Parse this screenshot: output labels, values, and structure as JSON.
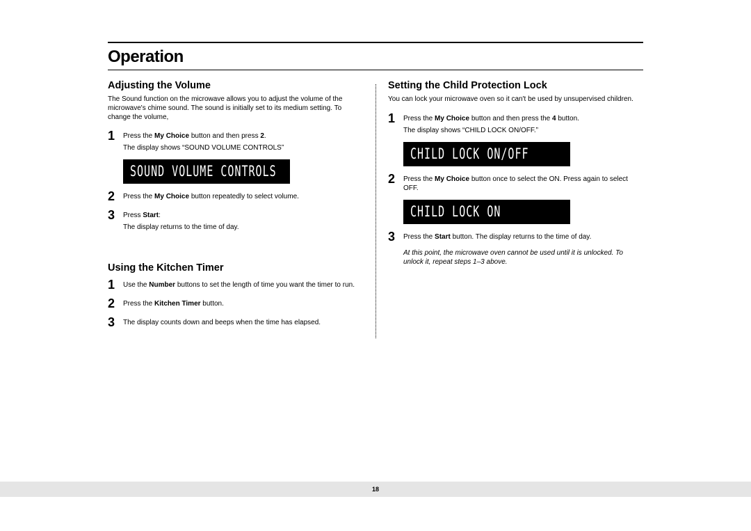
{
  "page": {
    "title": "Operation",
    "number": "18"
  },
  "colors": {
    "lcd_bg": "#000000",
    "lcd_fg": "#ffffff",
    "footer_bg": "#e5e5e5"
  },
  "left": {
    "section1": {
      "heading": "Adjusting the Volume",
      "intro": "The Sound function on the microwave allows you to adjust the volume of the microwave's chime sound. The sound is initially set to its medium setting. To change the volume,",
      "steps": {
        "s1": {
          "num": "1",
          "line1_pre": "Press the ",
          "line1_b1": "My Choice",
          "line1_mid": " button and then press ",
          "line1_b2": "2",
          "line1_post": ".",
          "line2": "The display shows “SOUND VOLUME CONTROLS”"
        },
        "lcd1": "SOUND VOLUME CONTROLS",
        "s2": {
          "num": "2",
          "pre": "Press the ",
          "b1": "My Choice",
          "post": " button repeatedly to select volume."
        },
        "s3": {
          "num": "3",
          "pre": "Press ",
          "b1": "Start",
          "post": ":",
          "line2": "The display returns to the time of day."
        }
      }
    },
    "section2": {
      "heading": "Using the Kitchen Timer",
      "steps": {
        "s1": {
          "num": "1",
          "pre": "Use the ",
          "b1": "Number",
          "post": " buttons to set the length of time you want the timer to run."
        },
        "s2": {
          "num": "2",
          "pre": "Press the ",
          "b1": "Kitchen Timer",
          "post": " button."
        },
        "s3": {
          "num": "3",
          "text": "The display counts down and beeps when the time has elapsed."
        }
      }
    }
  },
  "right": {
    "section1": {
      "heading": "Setting the Child Protection Lock",
      "intro": "You can lock your microwave oven so it can't be used by unsupervised children.",
      "steps": {
        "s1": {
          "num": "1",
          "pre": "Press the ",
          "b1": "My Choice",
          "mid": " button and then press the ",
          "b2": "4",
          "post": " button.",
          "line2": "The display shows “CHILD LOCK ON/OFF.”"
        },
        "lcd1": "CHILD LOCK ON/OFF",
        "s2": {
          "num": "2",
          "pre": "Press the ",
          "b1": "My Choice",
          "post": " button once to select the ON. Press again to select OFF."
        },
        "lcd2": "CHILD LOCK ON",
        "s3": {
          "num": "3",
          "pre": "Press the ",
          "b1": "Start",
          "post": " button. The display returns to the time of day."
        }
      },
      "note": "At this point, the microwave oven cannot be used until  it is unlocked. To unlock it, repeat steps 1–3 above."
    }
  }
}
